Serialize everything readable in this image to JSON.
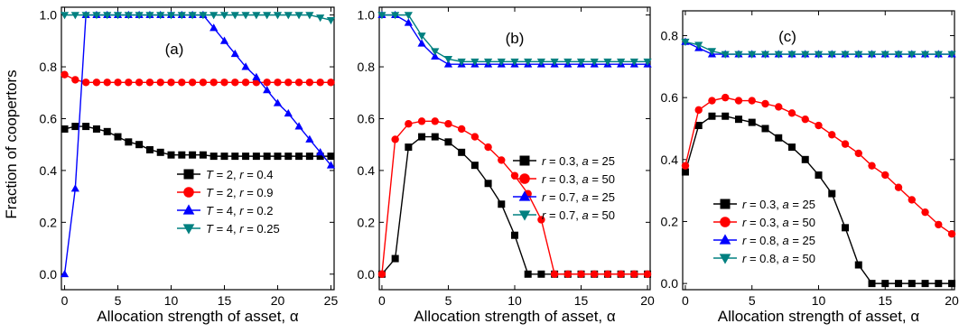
{
  "figure": {
    "ylabel": "Fraction of coopertors",
    "xlabel": "Allocation strength of asset, α"
  },
  "chart_data": [
    {
      "type": "line",
      "panel_label": "(a)",
      "xlabel": "Allocation strength of asset, α",
      "ylabel": "Fraction of coopertors",
      "xlim": [
        -0.3,
        25.3
      ],
      "ylim": [
        -0.06,
        1.03
      ],
      "xticks": [
        0,
        5,
        10,
        15,
        20,
        25
      ],
      "yticks": [
        0.0,
        0.2,
        0.4,
        0.6,
        0.8,
        1.0
      ],
      "legend_position": "bottom-right",
      "grid": false,
      "series": [
        {
          "label_parts": [
            "T",
            " = 2, ",
            "r",
            " = 0.4"
          ],
          "color": "#000000",
          "marker": "square",
          "x": [
            0,
            1,
            2,
            3,
            4,
            5,
            6,
            7,
            8,
            9,
            10,
            11,
            12,
            13,
            14,
            15,
            16,
            17,
            18,
            19,
            20,
            21,
            22,
            23,
            24,
            25
          ],
          "y": [
            0.56,
            0.57,
            0.57,
            0.56,
            0.55,
            0.53,
            0.51,
            0.5,
            0.48,
            0.47,
            0.46,
            0.46,
            0.46,
            0.46,
            0.455,
            0.455,
            0.455,
            0.455,
            0.455,
            0.455,
            0.455,
            0.455,
            0.455,
            0.455,
            0.455,
            0.455
          ]
        },
        {
          "label_parts": [
            "T",
            " = 2, ",
            "r",
            " = 0.9"
          ],
          "color": "#ff0000",
          "marker": "circle",
          "x": [
            0,
            1,
            2,
            3,
            4,
            5,
            6,
            7,
            8,
            9,
            10,
            11,
            12,
            13,
            14,
            15,
            16,
            17,
            18,
            19,
            20,
            21,
            22,
            23,
            24,
            25
          ],
          "y": [
            0.77,
            0.75,
            0.74,
            0.74,
            0.74,
            0.74,
            0.74,
            0.74,
            0.74,
            0.74,
            0.74,
            0.74,
            0.74,
            0.74,
            0.74,
            0.74,
            0.74,
            0.74,
            0.74,
            0.74,
            0.74,
            0.74,
            0.74,
            0.74,
            0.74,
            0.74
          ]
        },
        {
          "label_parts": [
            "T",
            " = 4, ",
            "r",
            " = 0.2"
          ],
          "color": "#0000ff",
          "marker": "triangle-up",
          "x": [
            0,
            1,
            2,
            3,
            4,
            5,
            6,
            7,
            8,
            9,
            10,
            11,
            12,
            13,
            14,
            15,
            16,
            17,
            18,
            19,
            20,
            21,
            22,
            23,
            24,
            25
          ],
          "y": [
            0.0,
            0.33,
            1.0,
            1.0,
            1.0,
            1.0,
            1.0,
            1.0,
            1.0,
            1.0,
            1.0,
            1.0,
            1.0,
            1.0,
            0.95,
            0.9,
            0.85,
            0.8,
            0.76,
            0.71,
            0.66,
            0.62,
            0.57,
            0.52,
            0.47,
            0.42
          ]
        },
        {
          "label_parts": [
            "T",
            " = 4, ",
            "r",
            " = 0.25"
          ],
          "color": "#008080",
          "marker": "triangle-down",
          "x": [
            0,
            1,
            2,
            3,
            4,
            5,
            6,
            7,
            8,
            9,
            10,
            11,
            12,
            13,
            14,
            15,
            16,
            17,
            18,
            19,
            20,
            21,
            22,
            23,
            24,
            25
          ],
          "y": [
            1.0,
            1.0,
            1.0,
            1.0,
            1.0,
            1.0,
            1.0,
            1.0,
            1.0,
            1.0,
            1.0,
            1.0,
            1.0,
            1.0,
            1.0,
            1.0,
            1.0,
            1.0,
            1.0,
            1.0,
            1.0,
            1.0,
            1.0,
            1.0,
            0.99,
            0.98
          ]
        }
      ]
    },
    {
      "type": "line",
      "panel_label": "(b)",
      "xlabel": "Allocation strength of asset, α",
      "xlim": [
        -0.2,
        20.2
      ],
      "ylim": [
        -0.06,
        1.03
      ],
      "xticks": [
        0,
        5,
        10,
        15,
        20
      ],
      "yticks": [
        0.0,
        0.2,
        0.4,
        0.6,
        0.8,
        1.0
      ],
      "legend_position": "center-right",
      "grid": false,
      "series": [
        {
          "label_parts": [
            "r",
            " = 0.3, ",
            "a",
            " = 25"
          ],
          "color": "#000000",
          "marker": "square",
          "x": [
            0,
            1,
            2,
            3,
            4,
            5,
            6,
            7,
            8,
            9,
            10,
            11,
            12,
            13,
            14,
            15,
            16,
            17,
            18,
            19,
            20
          ],
          "y": [
            0.0,
            0.06,
            0.49,
            0.53,
            0.53,
            0.51,
            0.47,
            0.42,
            0.35,
            0.27,
            0.15,
            0.0,
            0.0,
            0.0,
            0.0,
            0.0,
            0.0,
            0.0,
            0.0,
            0.0,
            0.0
          ]
        },
        {
          "label_parts": [
            "r",
            " = 0.3, ",
            "a",
            " = 50"
          ],
          "color": "#ff0000",
          "marker": "circle",
          "x": [
            0,
            1,
            2,
            3,
            4,
            5,
            6,
            7,
            8,
            9,
            10,
            11,
            12,
            13,
            14,
            15,
            16,
            17,
            18,
            19,
            20
          ],
          "y": [
            0.0,
            0.52,
            0.58,
            0.59,
            0.59,
            0.58,
            0.56,
            0.53,
            0.49,
            0.44,
            0.38,
            0.31,
            0.21,
            0.0,
            0.0,
            0.0,
            0.0,
            0.0,
            0.0,
            0.0,
            0.0
          ]
        },
        {
          "label_parts": [
            "r",
            " = 0.7, ",
            "a",
            " = 25"
          ],
          "color": "#0000ff",
          "marker": "triangle-up",
          "x": [
            0,
            1,
            2,
            3,
            4,
            5,
            6,
            7,
            8,
            9,
            10,
            11,
            12,
            13,
            14,
            15,
            16,
            17,
            18,
            19,
            20
          ],
          "y": [
            1.0,
            1.0,
            0.97,
            0.89,
            0.84,
            0.81,
            0.81,
            0.81,
            0.81,
            0.81,
            0.81,
            0.81,
            0.81,
            0.81,
            0.81,
            0.81,
            0.81,
            0.81,
            0.81,
            0.81,
            0.81
          ]
        },
        {
          "label_parts": [
            "r",
            " = 0.7, ",
            "a",
            " = 50"
          ],
          "color": "#008080",
          "marker": "triangle-down",
          "x": [
            0,
            1,
            2,
            3,
            4,
            5,
            6,
            7,
            8,
            9,
            10,
            11,
            12,
            13,
            14,
            15,
            16,
            17,
            18,
            19,
            20
          ],
          "y": [
            1.0,
            1.0,
            1.0,
            0.92,
            0.86,
            0.83,
            0.82,
            0.82,
            0.82,
            0.82,
            0.82,
            0.82,
            0.82,
            0.82,
            0.82,
            0.82,
            0.82,
            0.82,
            0.82,
            0.82,
            0.82
          ]
        }
      ]
    },
    {
      "type": "line",
      "panel_label": "(c)",
      "xlabel": "Allocation strength of asset, α",
      "xlim": [
        -0.2,
        20.2
      ],
      "ylim": [
        -0.02,
        0.88
      ],
      "xticks": [
        0,
        5,
        10,
        15,
        20
      ],
      "yticks": [
        0.0,
        0.2,
        0.4,
        0.6,
        0.8
      ],
      "legend_position": "bottom-left",
      "grid": false,
      "series": [
        {
          "label_parts": [
            "r",
            " = 0.3, ",
            "a",
            " = 25"
          ],
          "color": "#000000",
          "marker": "square",
          "x": [
            0,
            1,
            2,
            3,
            4,
            5,
            6,
            7,
            8,
            9,
            10,
            11,
            12,
            13,
            14,
            15,
            16,
            17,
            18,
            19,
            20
          ],
          "y": [
            0.36,
            0.51,
            0.54,
            0.54,
            0.53,
            0.52,
            0.5,
            0.47,
            0.44,
            0.4,
            0.35,
            0.29,
            0.18,
            0.06,
            0.0,
            0.0,
            0.0,
            0.0,
            0.0,
            0.0,
            0.0
          ]
        },
        {
          "label_parts": [
            "r",
            " = 0.3, ",
            "a",
            " = 50"
          ],
          "color": "#ff0000",
          "marker": "circle",
          "x": [
            0,
            1,
            2,
            3,
            4,
            5,
            6,
            7,
            8,
            9,
            10,
            11,
            12,
            13,
            14,
            15,
            16,
            17,
            18,
            19,
            20
          ],
          "y": [
            0.38,
            0.56,
            0.59,
            0.6,
            0.59,
            0.59,
            0.58,
            0.57,
            0.55,
            0.53,
            0.51,
            0.48,
            0.45,
            0.42,
            0.38,
            0.35,
            0.31,
            0.27,
            0.23,
            0.19,
            0.16
          ]
        },
        {
          "label_parts": [
            "r",
            " = 0.8, ",
            "a",
            " = 25"
          ],
          "color": "#0000ff",
          "marker": "triangle-up",
          "x": [
            0,
            1,
            2,
            3,
            4,
            5,
            6,
            7,
            8,
            9,
            10,
            11,
            12,
            13,
            14,
            15,
            16,
            17,
            18,
            19,
            20
          ],
          "y": [
            0.78,
            0.76,
            0.74,
            0.74,
            0.74,
            0.74,
            0.74,
            0.74,
            0.74,
            0.74,
            0.74,
            0.74,
            0.74,
            0.74,
            0.74,
            0.74,
            0.74,
            0.74,
            0.74,
            0.74,
            0.74
          ]
        },
        {
          "label_parts": [
            "r",
            " = 0.8, ",
            "a",
            " = 50"
          ],
          "color": "#008080",
          "marker": "triangle-down",
          "x": [
            0,
            1,
            2,
            3,
            4,
            5,
            6,
            7,
            8,
            9,
            10,
            11,
            12,
            13,
            14,
            15,
            16,
            17,
            18,
            19,
            20
          ],
          "y": [
            0.78,
            0.77,
            0.75,
            0.74,
            0.74,
            0.74,
            0.74,
            0.74,
            0.74,
            0.74,
            0.74,
            0.74,
            0.74,
            0.74,
            0.74,
            0.74,
            0.74,
            0.74,
            0.74,
            0.74,
            0.74
          ]
        }
      ]
    }
  ]
}
